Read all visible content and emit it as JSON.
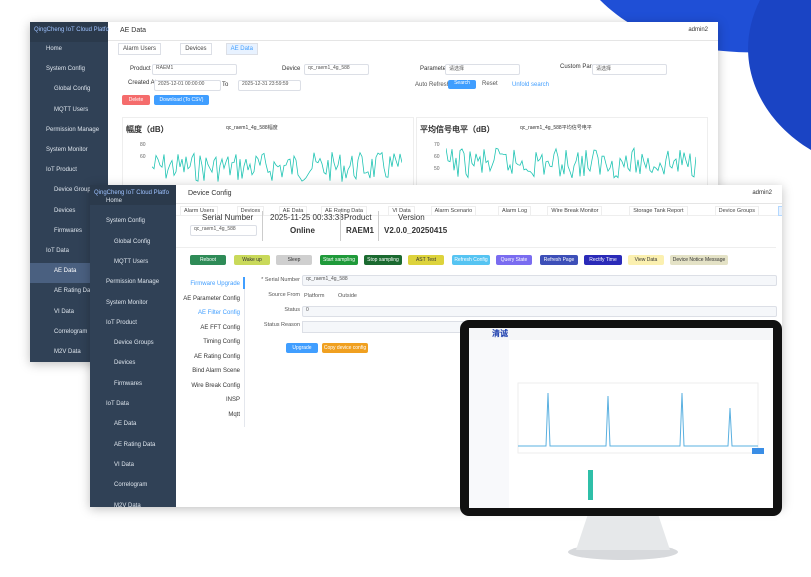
{
  "back": {
    "brand": "QingCheng IoT Cloud Platfo",
    "header_title": "AE Data",
    "user": "admin2",
    "menu": [
      "Home",
      "System Config",
      "Global Config",
      "MQTT Users",
      "Permission Manage",
      "System Monitor",
      "IoT Product",
      "Device Groups",
      "Devices",
      "Firmwares",
      "IoT Data",
      "AE Data",
      "AE Rating Data",
      "VI Data",
      "Correlogram",
      "M2V Data"
    ],
    "tabs": [
      "Alarm Users",
      "Devices",
      "AE Data"
    ],
    "filters": {
      "product_label": "Product",
      "product": "RAEM1",
      "device_label": "Device",
      "device": "qc_raem1_4g_588",
      "parameter_label": "Parameter",
      "parameter": "请选择",
      "custom_label": "Custom Param",
      "custom": "请选择",
      "created_label": "Created At",
      "from": "2025-12-01 00:00:00",
      "to_label": "To",
      "to": "2025-12-31 23:59:59",
      "auto_refresh": "Auto Refresh",
      "search": "Search",
      "reset": "Reset",
      "unfold": "Unfold search",
      "delete": "Delete",
      "download": "Download (To CSV)"
    },
    "charts": [
      {
        "title": "幅度（dB）",
        "legend": "qc_raem1_4g_588幅度",
        "yticks": [
          "80",
          "60"
        ]
      },
      {
        "title": "平均信号电平（dB）",
        "legend": "qc_raem1_4g_588平均信号电平",
        "yticks": [
          "70",
          "60",
          "50"
        ]
      }
    ]
  },
  "front": {
    "brand": "QingCheng IoT Cloud Platfo",
    "header_title": "Device Config",
    "user": "admin2",
    "menu": [
      "Home",
      "System Config",
      "Global Config",
      "MQTT Users",
      "Permission Manage",
      "System Monitor",
      "IoT Product",
      "Device Groups",
      "Devices",
      "Firmwares",
      "IoT Data",
      "AE Data",
      "AE Rating Data",
      "VI Data",
      "Correlogram",
      "M2V Data"
    ],
    "tabs": [
      "Alarm Users",
      "Devices",
      "AE Data",
      "AE Rating Data",
      "VI Data",
      "Alarm Scenario",
      "Alarm Log",
      "Wire Break Monitor",
      "Storage Tank Report",
      "Device Groups",
      "Device Config"
    ],
    "info": {
      "serial_label": "Serial Number",
      "serial": "qc_raem1_4g_588",
      "time": "2025-11-25 00:33:33",
      "status": "Online",
      "product_label": "Product",
      "product": "RAEM1",
      "version_label": "Version",
      "version": "V2.0.0_20250415"
    },
    "buttons": [
      {
        "label": "Reboot",
        "color": "#2e8b57"
      },
      {
        "label": "Wake up",
        "color": "#c9d95a"
      },
      {
        "label": "Sleep",
        "color": "#cfcfcf"
      },
      {
        "label": "Start sampling",
        "color": "#1f9a3a"
      },
      {
        "label": "Stop sampling",
        "color": "#1b6a30"
      },
      {
        "label": "AST Test",
        "color": "#ddd33c"
      },
      {
        "label": "Refresh Config",
        "color": "#56c4f2"
      },
      {
        "label": "Query State",
        "color": "#7a6cf0"
      },
      {
        "label": "Refresh Page",
        "color": "#3d4fb8"
      },
      {
        "label": "Rectify Time",
        "color": "#2a2ab8"
      },
      {
        "label": "View Data",
        "color": "#fbf0b0"
      },
      {
        "label": "Device Notice Message",
        "color": "#e4e2c6"
      }
    ],
    "config_menu": [
      "Firmware Upgrade",
      "AE Parameter Config",
      "AE Filter Config",
      "AE FFT Config",
      "Timing Config",
      "AE Rating Config",
      "Bind Alarm Scene",
      "Wire Break Config",
      "INSP",
      "Mqtt"
    ],
    "form": {
      "serial_label": "* Serial Number",
      "serial": "qc_raem1_4g_588",
      "source_label": "Source From",
      "platform": "Platform",
      "outside": "Outside",
      "status_label": "Status",
      "status": "0",
      "reason_label": "Status Reason",
      "upgrade": "Upgrade",
      "copy": "Copy device config"
    }
  },
  "monitor": {
    "logo": "清诚"
  }
}
